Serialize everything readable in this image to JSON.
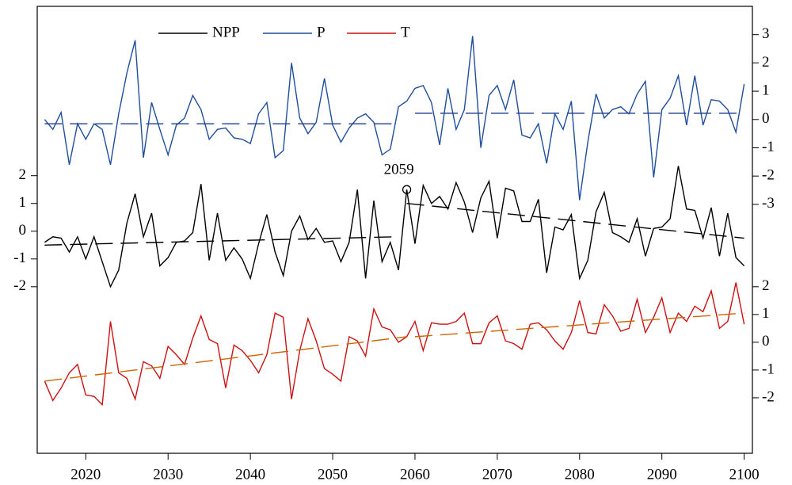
{
  "chart_data": {
    "type": "line",
    "x": [
      2015,
      2016,
      2017,
      2018,
      2019,
      2020,
      2021,
      2022,
      2023,
      2024,
      2025,
      2026,
      2027,
      2028,
      2029,
      2030,
      2031,
      2032,
      2033,
      2034,
      2035,
      2036,
      2037,
      2038,
      2039,
      2040,
      2041,
      2042,
      2043,
      2044,
      2045,
      2046,
      2047,
      2048,
      2049,
      2050,
      2051,
      2052,
      2053,
      2054,
      2055,
      2056,
      2057,
      2058,
      2059,
      2060,
      2061,
      2062,
      2063,
      2064,
      2065,
      2066,
      2067,
      2068,
      2069,
      2070,
      2071,
      2072,
      2073,
      2074,
      2075,
      2076,
      2077,
      2078,
      2079,
      2080,
      2081,
      2082,
      2083,
      2084,
      2085,
      2086,
      2087,
      2088,
      2089,
      2090,
      2091,
      2092,
      2093,
      2094,
      2095,
      2096,
      2097,
      2098,
      2099,
      2100
    ],
    "xlim": [
      2014.1,
      2101
    ],
    "xticks": [
      2020,
      2030,
      2040,
      2050,
      2060,
      2070,
      2080,
      2090,
      2100
    ],
    "series": [
      {
        "name": "NPP",
        "color": "#000000",
        "axis": "y",
        "ylim": [
          -8.0,
          8.1
        ],
        "yticks": [
          -2,
          -1,
          0,
          1,
          2
        ],
        "values": [
          -0.4,
          -0.2,
          -0.25,
          -0.75,
          -0.2,
          -1.0,
          -0.2,
          -1.1,
          -2.0,
          -1.4,
          0.3,
          1.35,
          -0.2,
          0.65,
          -1.25,
          -0.95,
          -0.4,
          -0.35,
          -0.05,
          1.7,
          -1.05,
          0.65,
          -1.05,
          -0.6,
          -1.0,
          -1.7,
          -0.45,
          0.6,
          -0.75,
          -1.6,
          0.0,
          0.55,
          -0.3,
          0.1,
          -0.4,
          -0.35,
          -1.1,
          -0.4,
          1.5,
          -1.7,
          1.1,
          -1.1,
          -0.4,
          -1.4,
          1.5,
          -0.45,
          1.65,
          1.0,
          1.25,
          0.8,
          1.75,
          1.05,
          -0.05,
          1.2,
          1.8,
          -0.25,
          1.55,
          1.45,
          0.35,
          0.35,
          1.15,
          -1.5,
          0.15,
          0.05,
          0.6,
          -1.7,
          -1.05,
          0.7,
          1.4,
          -0.05,
          -0.2,
          -0.4,
          0.45,
          -0.9,
          0.1,
          0.15,
          0.45,
          2.35,
          0.8,
          0.75,
          -0.25,
          0.85,
          -0.9,
          0.65,
          -0.95,
          -1.25
        ],
        "trend_color": "#000000",
        "trends": [
          {
            "x": [
              2015,
              2058
            ],
            "values": [
              -0.5,
              -0.2
            ]
          },
          {
            "x": [
              2059,
              2100
            ],
            "values": [
              1.0,
              -0.25
            ]
          }
        ],
        "annotation": {
          "text": "2059",
          "x": 2059,
          "y": 1.5
        }
      },
      {
        "name": "P",
        "color": "#1f4e9c",
        "axis": "y2",
        "ylim": [
          -11.8,
          4.0
        ],
        "yticks": [
          -3,
          -2,
          -1,
          0,
          1,
          2,
          3
        ],
        "values": [
          0,
          -0.35,
          0.25,
          -1.6,
          -0.15,
          -0.7,
          -0.15,
          -0.35,
          -1.6,
          0.2,
          1.65,
          2.8,
          -1.35,
          0.6,
          -0.35,
          -1.25,
          -0.2,
          0.05,
          0.85,
          0.35,
          -0.7,
          -0.35,
          -0.3,
          -0.65,
          -0.7,
          -0.85,
          0.2,
          0.6,
          -1.35,
          -1.1,
          2.0,
          0.05,
          -0.5,
          -0.1,
          1.45,
          -0.2,
          -0.8,
          -0.3,
          0.05,
          0.2,
          -0.1,
          -1.25,
          -1.05,
          0.45,
          0.65,
          1.1,
          1.2,
          0.6,
          -0.9,
          1.1,
          -0.35,
          0.35,
          2.95,
          -1.0,
          0.85,
          1.2,
          0.35,
          1.4,
          -0.55,
          -0.65,
          -0.15,
          -1.55,
          0.2,
          -0.35,
          0.65,
          -2.85,
          -0.8,
          0.9,
          0.05,
          0.35,
          0.45,
          0.2,
          0.9,
          1.35,
          -2.05,
          0.35,
          0.75,
          1.55,
          -0.2,
          1.55,
          -0.2,
          0.7,
          0.65,
          0.35,
          -0.45,
          1.25
        ],
        "trend_color": "#1f3f8f",
        "trends": [
          {
            "x": [
              2015,
              2058
            ],
            "values": [
              -0.15,
              -0.15
            ]
          },
          {
            "x": [
              2060,
              2100
            ],
            "values": [
              0.22,
              0.22
            ]
          }
        ]
      },
      {
        "name": "T",
        "color": "#cc1111",
        "axis": "y2",
        "ylim": [
          -4.0,
          12.1
        ],
        "yticks": [
          -2,
          -1,
          0,
          1,
          2
        ],
        "values": [
          -1.4,
          -2.1,
          -1.65,
          -1.1,
          -0.8,
          -1.9,
          -1.95,
          -2.25,
          0.75,
          -1.1,
          -1.3,
          -2.05,
          -0.7,
          -0.85,
          -1.3,
          -0.15,
          -0.45,
          -0.8,
          0.15,
          0.95,
          0.1,
          -0.05,
          -1.65,
          -0.1,
          -0.3,
          -0.65,
          -1.1,
          -0.45,
          1.05,
          0.9,
          -2.05,
          -0.3,
          0.85,
          0.05,
          -0.95,
          -1.15,
          -1.4,
          0.2,
          0.05,
          -0.5,
          1.2,
          0.55,
          0.45,
          0.0,
          0.2,
          0.75,
          -0.3,
          0.7,
          0.65,
          0.65,
          0.75,
          1.05,
          -0.05,
          -0.05,
          0.7,
          0.95,
          0.05,
          -0.05,
          -0.25,
          0.65,
          0.7,
          0.45,
          0.05,
          -0.25,
          0.35,
          1.5,
          0.35,
          0.3,
          1.35,
          0.95,
          0.4,
          0.5,
          1.55,
          0.35,
          0.9,
          1.6,
          0.35,
          1.05,
          0.75,
          1.3,
          1.1,
          1.85,
          0.5,
          0.75,
          2.15,
          0.65
        ],
        "trend_color": "#cc6600",
        "trends": [
          {
            "x": [
              2015,
              2059
            ],
            "values": [
              -1.4,
              0.2
            ]
          },
          {
            "x": [
              2060,
              2100
            ],
            "values": [
              0.2,
              1.05
            ]
          }
        ]
      }
    ]
  }
}
